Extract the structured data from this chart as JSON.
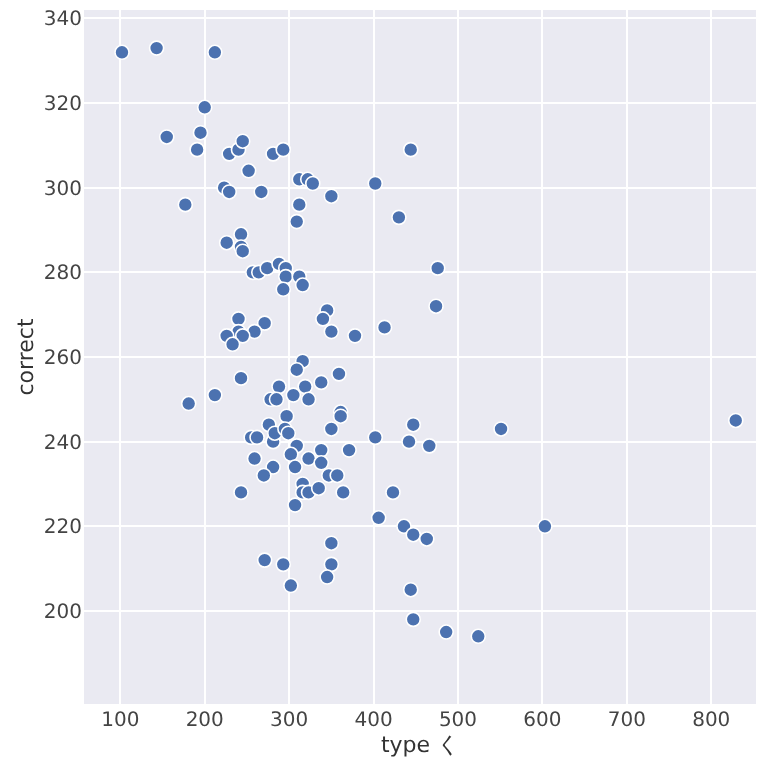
{
  "chart_data": {
    "type": "scatter",
    "xlabel": "type く",
    "ylabel": "correct",
    "color": "#4c72b0",
    "marker": "circle",
    "grid": true,
    "xlim": [
      57,
      853
    ],
    "ylim": [
      178,
      342
    ],
    "xticks": [
      100,
      200,
      300,
      400,
      500,
      600,
      700,
      800
    ],
    "yticks": [
      200,
      220,
      240,
      260,
      280,
      300,
      320,
      340
    ],
    "x": [
      102,
      143,
      212,
      200,
      155,
      195,
      191,
      229,
      240,
      245,
      281,
      293,
      252,
      223,
      229,
      267,
      312,
      322,
      328,
      350,
      312,
      309,
      177,
      402,
      430,
      444,
      226,
      243,
      243,
      245,
      257,
      264,
      274,
      288,
      296,
      296,
      312,
      316,
      293,
      476,
      474,
      345,
      340,
      350,
      378,
      413,
      240,
      240,
      271,
      259,
      245,
      226,
      233,
      316,
      243,
      181,
      212,
      288,
      278,
      285,
      305,
      309,
      319,
      323,
      338,
      359,
      297,
      276,
      361,
      361,
      255,
      262,
      281,
      283,
      295,
      299,
      350,
      309,
      302,
      338,
      323,
      371,
      402,
      447,
      442,
      466,
      259,
      281,
      270,
      307,
      338,
      347,
      357,
      316,
      316,
      323,
      335,
      364,
      243,
      307,
      423,
      406,
      436,
      447,
      463,
      350,
      271,
      293,
      350,
      345,
      302,
      444,
      447,
      551,
      829,
      603,
      486,
      524
    ],
    "values": [
      332,
      333,
      332,
      319,
      312,
      313,
      309,
      308,
      309,
      311,
      308,
      309,
      304,
      300,
      299,
      299,
      302,
      302,
      301,
      298,
      296,
      292,
      296,
      301,
      293,
      309,
      287,
      289,
      286,
      285,
      280,
      280,
      281,
      282,
      281,
      279,
      279,
      277,
      276,
      281,
      272,
      271,
      269,
      266,
      265,
      267,
      269,
      266,
      268,
      266,
      265,
      265,
      263,
      259,
      255,
      249,
      251,
      253,
      250,
      250,
      251,
      257,
      253,
      250,
      254,
      256,
      246,
      244,
      247,
      246,
      241,
      241,
      240,
      242,
      243,
      242,
      243,
      239,
      237,
      238,
      236,
      238,
      241,
      244,
      240,
      239,
      236,
      234,
      232,
      234,
      235,
      232,
      232,
      230,
      228,
      228,
      229,
      228,
      228,
      225,
      228,
      222,
      220,
      218,
      217,
      216,
      212,
      211,
      211,
      208,
      206,
      205,
      198,
      243,
      245,
      220,
      195,
      194
    ]
  }
}
